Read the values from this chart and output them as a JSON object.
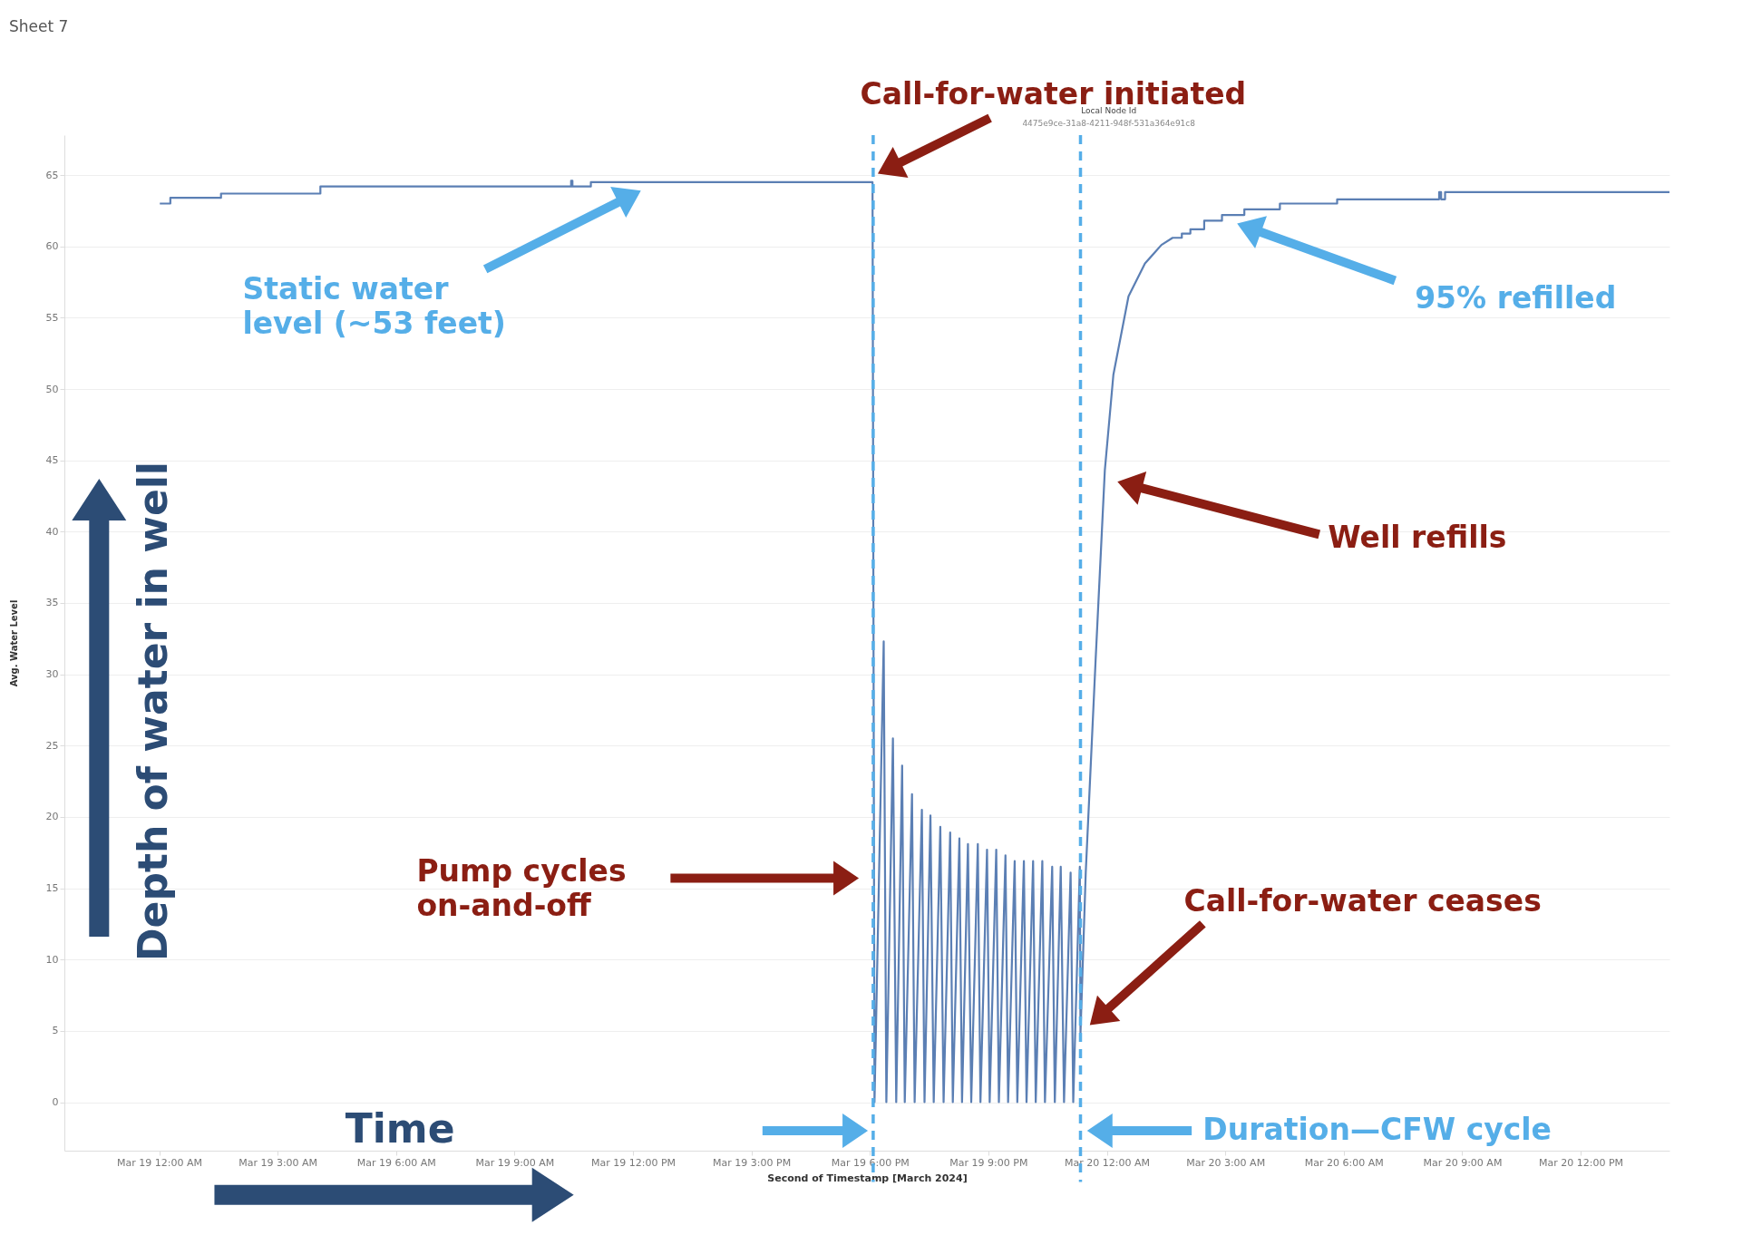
{
  "chart_data": {
    "type": "line",
    "title": "Sheet 7",
    "xlabel": "Second of Timestamp [March 2024]",
    "ylabel": "Avg. Water Level",
    "xlim": [
      "2024-03-18T21:36",
      "2024-03-20T14:15"
    ],
    "ylim": [
      -3.4,
      67.8
    ],
    "xticks": [
      {
        "value": "2024-03-19T00:00",
        "label": "Mar 19 12:00 AM"
      },
      {
        "value": "2024-03-19T03:00",
        "label": "Mar 19 3:00 AM"
      },
      {
        "value": "2024-03-19T06:00",
        "label": "Mar 19 6:00 AM"
      },
      {
        "value": "2024-03-19T09:00",
        "label": "Mar 19 9:00 AM"
      },
      {
        "value": "2024-03-19T12:00",
        "label": "Mar 19 12:00 PM"
      },
      {
        "value": "2024-03-19T15:00",
        "label": "Mar 19 3:00 PM"
      },
      {
        "value": "2024-03-19T18:00",
        "label": "Mar 19 6:00 PM"
      },
      {
        "value": "2024-03-19T21:00",
        "label": "Mar 19 9:00 PM"
      },
      {
        "value": "2024-03-20T00:00",
        "label": "Mar 20 12:00 AM"
      },
      {
        "value": "2024-03-20T03:00",
        "label": "Mar 20 3:00 AM"
      },
      {
        "value": "2024-03-20T06:00",
        "label": "Mar 20 6:00 AM"
      },
      {
        "value": "2024-03-20T09:00",
        "label": "Mar 20 9:00 AM"
      },
      {
        "value": "2024-03-20T12:00",
        "label": "Mar 20 12:00 PM"
      }
    ],
    "yticks": [
      0,
      5,
      10,
      15,
      20,
      25,
      30,
      35,
      40,
      45,
      50,
      55,
      60,
      65
    ],
    "grid": "y",
    "series": [
      {
        "color": "#5b7fb4",
        "x": [
          "2024-03-19T00:01",
          "2024-03-19T00:17",
          "2024-03-19T00:17",
          "2024-03-19T01:34",
          "2024-03-19T01:34",
          "2024-03-19T04:05",
          "2024-03-19T04:05",
          "2024-03-19T10:26",
          "2024-03-19T10:26",
          "2024-03-19T10:28",
          "2024-03-19T10:28",
          "2024-03-19T10:56",
          "2024-03-19T10:56",
          "2024-03-19T18:04",
          "2024-03-19T18:07",
          "2024-03-19T18:21",
          "2024-03-19T18:25",
          "2024-03-19T18:35",
          "2024-03-19T18:40",
          "2024-03-19T18:49",
          "2024-03-19T18:53",
          "2024-03-19T19:04",
          "2024-03-19T19:08",
          "2024-03-19T19:19",
          "2024-03-19T19:23",
          "2024-03-19T19:32",
          "2024-03-19T19:37",
          "2024-03-19T19:47",
          "2024-03-19T19:52",
          "2024-03-19T20:02",
          "2024-03-19T20:06",
          "2024-03-19T20:16",
          "2024-03-19T20:20",
          "2024-03-19T20:29",
          "2024-03-19T20:34",
          "2024-03-19T20:44",
          "2024-03-19T20:48",
          "2024-03-19T20:58",
          "2024-03-19T21:02",
          "2024-03-19T21:12",
          "2024-03-19T21:16",
          "2024-03-19T21:26",
          "2024-03-19T21:30",
          "2024-03-19T21:40",
          "2024-03-19T21:44",
          "2024-03-19T21:54",
          "2024-03-19T21:58",
          "2024-03-19T22:08",
          "2024-03-19T22:12",
          "2024-03-19T22:22",
          "2024-03-19T22:26",
          "2024-03-19T22:37",
          "2024-03-19T22:41",
          "2024-03-19T22:50",
          "2024-03-19T22:55",
          "2024-03-19T23:05",
          "2024-03-19T23:09",
          "2024-03-19T23:19",
          "2024-03-19T23:20",
          "2024-03-19T23:28",
          "2024-03-19T23:43",
          "2024-03-19T23:57",
          "2024-03-20T00:10",
          "2024-03-20T00:33",
          "2024-03-20T00:58",
          "2024-03-20T01:23",
          "2024-03-20T01:40",
          "2024-03-20T01:54",
          "2024-03-20T01:54",
          "2024-03-20T02:07",
          "2024-03-20T02:07",
          "2024-03-20T02:28",
          "2024-03-20T02:28",
          "2024-03-20T02:55",
          "2024-03-20T02:55",
          "2024-03-20T03:29",
          "2024-03-20T03:29",
          "2024-03-20T04:23",
          "2024-03-20T04:23",
          "2024-03-20T05:50",
          "2024-03-20T05:50",
          "2024-03-20T08:25",
          "2024-03-20T08:25",
          "2024-03-20T08:28",
          "2024-03-20T08:28",
          "2024-03-20T08:34",
          "2024-03-20T08:34",
          "2024-03-20T14:15"
        ],
        "values": [
          63.0,
          63.0,
          63.4,
          63.4,
          63.7,
          63.7,
          64.2,
          64.2,
          64.6,
          64.6,
          64.2,
          64.2,
          64.5,
          64.5,
          0,
          32.3,
          0,
          25.5,
          0,
          23.6,
          0,
          21.6,
          0,
          20.5,
          0,
          20.1,
          0,
          19.3,
          0,
          18.9,
          0,
          18.5,
          0,
          18.1,
          0,
          18.1,
          0,
          17.7,
          0,
          17.7,
          0,
          17.3,
          0,
          16.9,
          0,
          16.9,
          0,
          16.9,
          0,
          16.9,
          0,
          16.5,
          0,
          16.5,
          0,
          16.1,
          0,
          16.5,
          4.8,
          16.1,
          31.0,
          44.3,
          51.0,
          56.5,
          58.8,
          60.1,
          60.6,
          60.6,
          60.9,
          60.9,
          61.2,
          61.2,
          61.8,
          61.8,
          62.2,
          62.2,
          62.6,
          62.6,
          63.0,
          63.0,
          63.3,
          63.3,
          63.8,
          63.8,
          63.3,
          63.3,
          63.8,
          63.8
        ]
      }
    ],
    "ref_lines": [
      {
        "axis": "x",
        "value": "2024-03-19T18:05",
        "color": "#55aee8",
        "line_style": "dashed"
      },
      {
        "axis": "x",
        "value": "2024-03-19T23:20",
        "color": "#55aee8",
        "line_style": "dashed"
      }
    ],
    "annotations": [
      "Call-for-water initiated",
      "Local Node Id",
      "4475e9ce-31a8-4211-948f-531a364e91c8",
      "Static water\nlevel (~53 feet)",
      "95% refilled",
      "Well refills",
      "Pump cycles\non-and-off",
      "Call-for-water ceases",
      "Duration—CFW cycle",
      "Time",
      "Depth of water in well"
    ]
  }
}
